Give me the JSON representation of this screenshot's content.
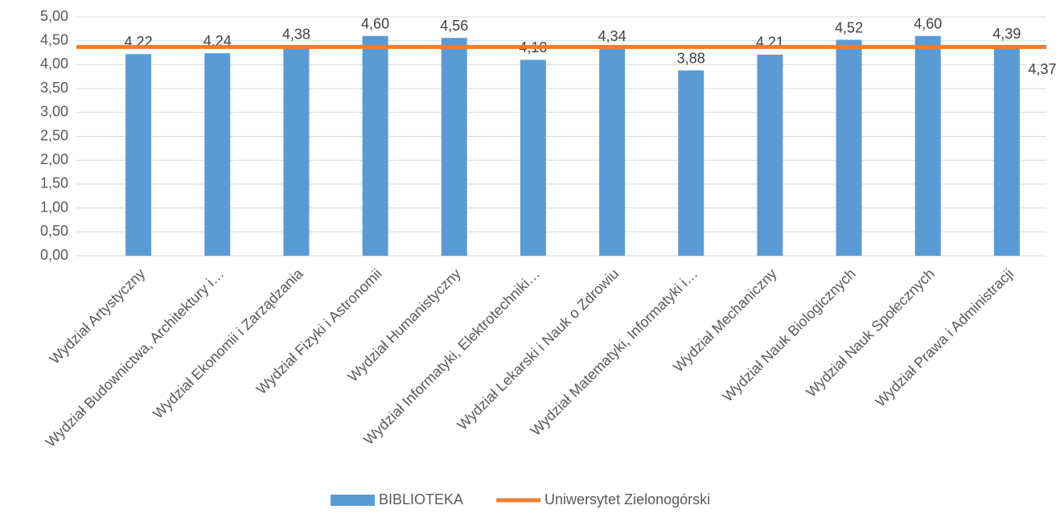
{
  "chart_data": {
    "type": "bar_line",
    "categories": [
      "Wydział Artystyczny",
      "Wydział Budownictwa, Architektury i…",
      "Wydział Ekonomii i Zarządzania",
      "Wydział Fizyki i Astronomii",
      "Wydział Humanistyczny",
      "Wydział Informatyki, Elektrotechniki…",
      "Wydział Lekarski i Nauk o Zdrowiu",
      "Wydział Matematyki, Informatyki i…",
      "Wydział Mechaniczny",
      "Wydział Nauk Biologicznych",
      "Wydział Nauk Społecznych",
      "Wydział Prawa i Administracji"
    ],
    "series": [
      {
        "name": "BIBLIOTEKA",
        "type": "bar",
        "color": "#5b9bd5",
        "values": [
          4.22,
          4.24,
          4.38,
          4.6,
          4.56,
          4.1,
          4.34,
          3.88,
          4.21,
          4.52,
          4.6,
          4.39
        ],
        "value_labels": [
          "4,22",
          "4,24",
          "4,38",
          "4,60",
          "4,56",
          "4,10",
          "4,34",
          "3,88",
          "4,21",
          "4,52",
          "4,60",
          "4,39"
        ]
      },
      {
        "name": "Uniwersytet Zielonogórski",
        "type": "line",
        "color": "#ed7d31",
        "value": 4.37,
        "value_label": "4,37"
      }
    ],
    "ylim": [
      0,
      5
    ],
    "yticks": [
      {
        "value": 0,
        "label": "0,00"
      },
      {
        "value": 0.5,
        "label": "0,50"
      },
      {
        "value": 1,
        "label": "1,00"
      },
      {
        "value": 1.5,
        "label": "1,50"
      },
      {
        "value": 2,
        "label": "2,00"
      },
      {
        "value": 2.5,
        "label": "2,50"
      },
      {
        "value": 3,
        "label": "3,00"
      },
      {
        "value": 3.5,
        "label": "3,50"
      },
      {
        "value": 4,
        "label": "4,00"
      },
      {
        "value": 4.5,
        "label": "4,50"
      },
      {
        "value": 5,
        "label": "5,00"
      }
    ],
    "grid": true,
    "legend": "bottom"
  }
}
